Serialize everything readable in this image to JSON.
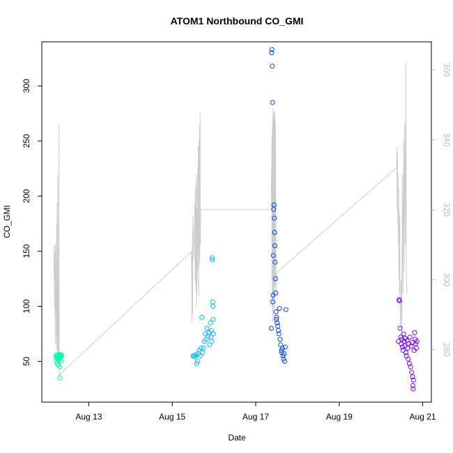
{
  "chart_data": {
    "type": "scatter",
    "title": "ATOM1 Northbound CO_GMI",
    "xlabel": "Date",
    "ylabel": "CO_GMI",
    "xlim": [
      "2016-08-11T21:00",
      "2016-08-21T05:00"
    ],
    "ylim": [
      13,
      340
    ],
    "y2lim": [
      265,
      368
    ],
    "x_ticks": [
      {
        "label": "Aug 13",
        "value": "2016-08-13T00:00"
      },
      {
        "label": "Aug 15",
        "value": "2016-08-15T00:00"
      },
      {
        "label": "Aug 17",
        "value": "2016-08-17T00:00"
      },
      {
        "label": "Aug 19",
        "value": "2016-08-19T00:00"
      },
      {
        "label": "Aug 21",
        "value": "2016-08-21T00:00"
      }
    ],
    "y_ticks": [
      50,
      100,
      150,
      200,
      250,
      300
    ],
    "y2_ticks": [
      280,
      300,
      320,
      340,
      360
    ],
    "grid": false,
    "colors": {
      "axis": "#000000",
      "secondary_axis": "#bbbbbb",
      "altitude_line": "#cccccc",
      "series_1": "#00ffaa",
      "series_2": "#00bbff",
      "series_3": "#0044ff",
      "series_4": "#7700ff"
    },
    "series": [
      {
        "color": "#00ffaa",
        "points": [
          [
            "2016-08-12T05:00",
            55
          ],
          [
            "2016-08-12T05:10",
            53
          ],
          [
            "2016-08-12T05:20",
            50
          ],
          [
            "2016-08-12T05:30",
            56
          ],
          [
            "2016-08-12T05:40",
            54
          ],
          [
            "2016-08-12T05:50",
            48
          ],
          [
            "2016-08-12T06:00",
            52
          ],
          [
            "2016-08-12T06:10",
            55
          ],
          [
            "2016-08-12T06:20",
            47
          ],
          [
            "2016-08-12T06:30",
            53
          ],
          [
            "2016-08-12T06:40",
            56
          ],
          [
            "2016-08-12T06:50",
            51
          ],
          [
            "2016-08-12T07:00",
            55
          ],
          [
            "2016-08-12T07:10",
            54
          ],
          [
            "2016-08-12T07:20",
            45
          ],
          [
            "2016-08-12T07:30",
            53
          ],
          [
            "2016-08-12T07:40",
            56
          ],
          [
            "2016-08-12T07:50",
            55
          ],
          [
            "2016-08-12T08:00",
            50
          ],
          [
            "2016-08-12T08:10",
            56
          ],
          [
            "2016-08-12T08:20",
            55
          ],
          [
            "2016-08-12T07:20",
            35
          ]
        ]
      },
      {
        "color": "#00bbff",
        "points": [
          [
            "2016-08-15T12:00",
            55
          ],
          [
            "2016-08-15T12:30",
            55
          ],
          [
            "2016-08-15T13:00",
            54
          ],
          [
            "2016-08-15T13:30",
            56
          ],
          [
            "2016-08-15T14:00",
            48
          ],
          [
            "2016-08-15T14:30",
            50
          ],
          [
            "2016-08-15T15:00",
            57
          ],
          [
            "2016-08-15T15:30",
            60
          ],
          [
            "2016-08-15T16:00",
            55
          ],
          [
            "2016-08-15T16:30",
            62
          ],
          [
            "2016-08-15T17:00",
            90
          ],
          [
            "2016-08-15T17:30",
            58
          ],
          [
            "2016-08-15T18:00",
            62
          ],
          [
            "2016-08-15T18:30",
            68
          ],
          [
            "2016-08-15T19:00",
            75
          ],
          [
            "2016-08-15T19:30",
            70
          ],
          [
            "2016-08-15T20:00",
            80
          ],
          [
            "2016-08-15T20:30",
            73
          ],
          [
            "2016-08-15T21:00",
            76
          ],
          [
            "2016-08-15T21:30",
            65
          ],
          [
            "2016-08-15T22:00",
            85
          ],
          [
            "2016-08-15T22:15",
            72
          ],
          [
            "2016-08-15T22:30",
            78
          ],
          [
            "2016-08-15T22:45",
            68
          ],
          [
            "2016-08-15T23:00",
            144
          ],
          [
            "2016-08-15T23:05",
            142
          ],
          [
            "2016-08-15T23:15",
            104
          ],
          [
            "2016-08-15T23:20",
            100
          ],
          [
            "2016-08-15T23:30",
            88
          ],
          [
            "2016-08-15T23:40",
            75
          ]
        ]
      },
      {
        "color": "#0044ff",
        "points": [
          [
            "2016-08-17T09:00",
            80
          ],
          [
            "2016-08-17T09:10",
            330
          ],
          [
            "2016-08-17T09:20",
            333
          ],
          [
            "2016-08-17T09:30",
            318
          ],
          [
            "2016-08-17T09:40",
            285
          ],
          [
            "2016-08-17T09:50",
            104
          ],
          [
            "2016-08-17T10:00",
            110
          ],
          [
            "2016-08-17T10:10",
            146
          ],
          [
            "2016-08-17T10:20",
            188
          ],
          [
            "2016-08-17T10:30",
            192
          ],
          [
            "2016-08-17T10:40",
            180
          ],
          [
            "2016-08-17T10:50",
            167
          ],
          [
            "2016-08-17T11:00",
            155
          ],
          [
            "2016-08-17T11:10",
            140
          ],
          [
            "2016-08-17T11:20",
            125
          ],
          [
            "2016-08-17T11:30",
            112
          ],
          [
            "2016-08-17T11:40",
            95
          ],
          [
            "2016-08-17T11:50",
            88
          ],
          [
            "2016-08-17T12:00",
            90
          ],
          [
            "2016-08-17T12:20",
            85
          ],
          [
            "2016-08-17T12:40",
            82
          ],
          [
            "2016-08-17T13:00",
            78
          ],
          [
            "2016-08-17T13:20",
            75
          ],
          [
            "2016-08-17T13:40",
            98
          ],
          [
            "2016-08-17T14:00",
            70
          ],
          [
            "2016-08-17T14:20",
            65
          ],
          [
            "2016-08-17T14:40",
            60
          ],
          [
            "2016-08-17T15:00",
            58
          ],
          [
            "2016-08-17T15:20",
            62
          ],
          [
            "2016-08-17T15:40",
            55
          ],
          [
            "2016-08-17T16:00",
            52
          ],
          [
            "2016-08-17T16:20",
            57
          ],
          [
            "2016-08-17T16:40",
            50
          ],
          [
            "2016-08-17T17:00",
            63
          ],
          [
            "2016-08-17T17:20",
            97
          ]
        ]
      },
      {
        "color": "#7700ff",
        "points": [
          [
            "2016-08-20T10:00",
            68
          ],
          [
            "2016-08-20T10:20",
            106
          ],
          [
            "2016-08-20T10:40",
            105
          ],
          [
            "2016-08-20T11:00",
            80
          ],
          [
            "2016-08-20T11:20",
            72
          ],
          [
            "2016-08-20T11:40",
            66
          ],
          [
            "2016-08-20T12:00",
            70
          ],
          [
            "2016-08-20T12:20",
            63
          ],
          [
            "2016-08-20T12:40",
            60
          ],
          [
            "2016-08-20T13:00",
            75
          ],
          [
            "2016-08-20T13:20",
            68
          ],
          [
            "2016-08-20T13:40",
            64
          ],
          [
            "2016-08-20T14:00",
            71
          ],
          [
            "2016-08-20T14:20",
            58
          ],
          [
            "2016-08-20T14:40",
            55
          ],
          [
            "2016-08-20T15:00",
            69
          ],
          [
            "2016-08-20T15:20",
            62
          ],
          [
            "2016-08-20T15:40",
            52
          ],
          [
            "2016-08-20T16:00",
            66
          ],
          [
            "2016-08-20T16:20",
            48
          ],
          [
            "2016-08-20T16:40",
            72
          ],
          [
            "2016-08-20T17:00",
            45
          ],
          [
            "2016-08-20T17:20",
            64
          ],
          [
            "2016-08-20T17:40",
            40
          ],
          [
            "2016-08-20T18:00",
            67
          ],
          [
            "2016-08-20T18:10",
            36
          ],
          [
            "2016-08-20T18:20",
            28
          ],
          [
            "2016-08-20T18:30",
            25
          ],
          [
            "2016-08-20T18:40",
            33
          ],
          [
            "2016-08-20T19:00",
            60
          ],
          [
            "2016-08-20T19:20",
            76
          ],
          [
            "2016-08-20T19:40",
            70
          ],
          [
            "2016-08-20T20:00",
            66
          ],
          [
            "2016-08-20T20:20",
            62
          ],
          [
            "2016-08-20T20:40",
            68
          ]
        ]
      }
    ],
    "altitude_line": {
      "axis": "secondary",
      "points": [
        [
          "2016-08-12T04:00",
          300
        ],
        [
          "2016-08-12T04:10",
          310
        ],
        [
          "2016-08-12T04:20",
          292
        ],
        [
          "2016-08-12T04:30",
          308
        ],
        [
          "2016-08-12T04:40",
          282
        ],
        [
          "2016-08-12T04:50",
          310
        ],
        [
          "2016-08-12T05:00",
          290
        ],
        [
          "2016-08-12T05:10",
          306
        ],
        [
          "2016-08-12T05:20",
          280
        ],
        [
          "2016-08-12T05:30",
          316
        ],
        [
          "2016-08-12T05:40",
          282
        ],
        [
          "2016-08-12T05:50",
          322
        ],
        [
          "2016-08-12T06:00",
          278
        ],
        [
          "2016-08-12T06:10",
          330
        ],
        [
          "2016-08-12T06:20",
          276
        ],
        [
          "2016-08-12T06:30",
          292
        ],
        [
          "2016-08-12T06:40",
          275
        ],
        [
          "2016-08-12T06:50",
          344
        ],
        [
          "2016-08-12T07:00",
          272
        ],
        [
          "2016-08-12T07:30",
          273
        ],
        [
          "2016-08-15T11:00",
          308
        ],
        [
          "2016-08-15T11:10",
          304
        ],
        [
          "2016-08-15T11:20",
          288
        ],
        [
          "2016-08-15T11:30",
          310
        ],
        [
          "2016-08-15T11:40",
          290
        ],
        [
          "2016-08-15T11:50",
          318
        ],
        [
          "2016-08-15T12:00",
          314
        ],
        [
          "2016-08-15T12:10",
          312
        ],
        [
          "2016-08-15T12:20",
          306
        ],
        [
          "2016-08-15T13:00",
          322
        ],
        [
          "2016-08-15T13:10",
          300
        ],
        [
          "2016-08-15T13:20",
          326
        ],
        [
          "2016-08-15T13:30",
          298
        ],
        [
          "2016-08-15T13:40",
          328
        ],
        [
          "2016-08-15T13:50",
          292
        ],
        [
          "2016-08-15T14:00",
          330
        ],
        [
          "2016-08-15T14:10",
          296
        ],
        [
          "2016-08-15T14:20",
          320
        ],
        [
          "2016-08-15T14:30",
          302
        ],
        [
          "2016-08-15T14:40",
          332
        ],
        [
          "2016-08-15T14:50",
          308
        ],
        [
          "2016-08-15T15:00",
          338
        ],
        [
          "2016-08-15T15:10",
          295
        ],
        [
          "2016-08-15T15:20",
          340
        ],
        [
          "2016-08-15T15:30",
          304
        ],
        [
          "2016-08-15T15:40",
          344
        ],
        [
          "2016-08-15T15:50",
          306
        ],
        [
          "2016-08-15T16:00",
          348
        ],
        [
          "2016-08-15T16:10",
          310
        ],
        [
          "2016-08-15T16:20",
          320
        ],
        [
          "2016-08-17T09:00",
          320
        ],
        [
          "2016-08-17T09:05",
          332
        ],
        [
          "2016-08-17T09:10",
          324
        ],
        [
          "2016-08-17T09:15",
          340
        ],
        [
          "2016-08-17T09:20",
          300
        ],
        [
          "2016-08-17T09:25",
          342
        ],
        [
          "2016-08-17T09:30",
          292
        ],
        [
          "2016-08-17T09:35",
          344
        ],
        [
          "2016-08-17T09:40",
          288
        ],
        [
          "2016-08-17T09:45",
          346
        ],
        [
          "2016-08-17T09:50",
          296
        ],
        [
          "2016-08-17T09:55",
          348
        ],
        [
          "2016-08-17T10:00",
          290
        ],
        [
          "2016-08-17T10:05",
          349
        ],
        [
          "2016-08-17T10:10",
          295
        ],
        [
          "2016-08-17T10:15",
          348
        ],
        [
          "2016-08-17T10:20",
          300
        ],
        [
          "2016-08-17T10:25",
          348
        ],
        [
          "2016-08-17T10:30",
          292
        ],
        [
          "2016-08-17T10:35",
          347
        ],
        [
          "2016-08-17T10:40",
          296
        ],
        [
          "2016-08-17T10:45",
          346
        ],
        [
          "2016-08-17T10:50",
          302
        ],
        [
          "2016-08-17T10:55",
          345
        ],
        [
          "2016-08-17T11:00",
          304
        ],
        [
          "2016-08-17T11:05",
          348
        ],
        [
          "2016-08-17T11:10",
          298
        ],
        [
          "2016-08-17T11:20",
          345
        ],
        [
          "2016-08-17T11:40",
          296
        ],
        [
          "2016-08-17T12:00",
          302
        ],
        [
          "2016-08-20T09:00",
          332
        ],
        [
          "2016-08-20T09:10",
          338
        ],
        [
          "2016-08-20T09:20",
          320
        ],
        [
          "2016-08-20T09:30",
          336
        ],
        [
          "2016-08-20T09:40",
          316
        ],
        [
          "2016-08-20T09:50",
          330
        ],
        [
          "2016-08-20T10:00",
          310
        ],
        [
          "2016-08-20T10:10",
          326
        ],
        [
          "2016-08-20T10:20",
          300
        ],
        [
          "2016-08-20T10:30",
          320
        ],
        [
          "2016-08-20T10:40",
          296
        ],
        [
          "2016-08-20T10:50",
          318
        ],
        [
          "2016-08-20T11:00",
          292
        ],
        [
          "2016-08-20T11:20",
          286
        ],
        [
          "2016-08-20T11:40",
          300
        ],
        [
          "2016-08-20T12:00",
          284
        ],
        [
          "2016-08-20T12:20",
          330
        ],
        [
          "2016-08-20T12:40",
          296
        ],
        [
          "2016-08-20T13:00",
          340
        ],
        [
          "2016-08-20T13:20",
          302
        ],
        [
          "2016-08-20T13:40",
          345
        ],
        [
          "2016-08-20T14:00",
          310
        ],
        [
          "2016-08-20T14:20",
          362
        ],
        [
          "2016-08-20T14:40",
          300
        ],
        [
          "2016-08-20T15:00",
          296
        ]
      ]
    }
  }
}
